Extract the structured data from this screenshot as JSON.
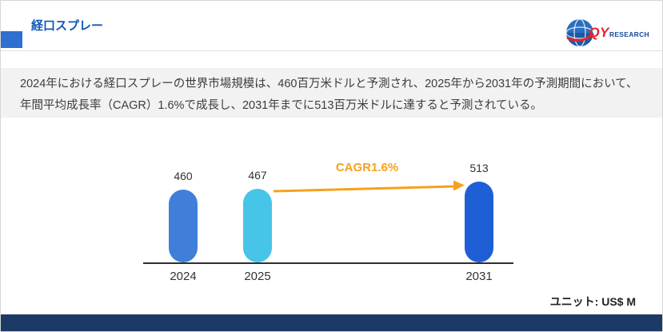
{
  "header": {
    "title": "経口スプレー",
    "logo": {
      "qy": "QY",
      "research": "RESEARCH"
    }
  },
  "description": "2024年における経口スプレーの世界市場規模は、460百万米ドルと予測され、2025年から2031年の予測期間において、年間平均成長率（CAGR）1.6%で成長し、2031年までに513百万米ドルに達すると予測されている。",
  "chart_data": {
    "type": "bar",
    "categories": [
      "2024",
      "2025",
      "2031"
    ],
    "values": [
      460,
      467,
      513
    ],
    "title": "",
    "xlabel": "",
    "ylabel": "",
    "ylim": [
      0,
      550
    ],
    "grid": false,
    "legend": false,
    "annotation": "CAGR1.6%",
    "unit_label": "ユニット: US$ M",
    "bar_colors": [
      "#3f7fd9",
      "#47c5e8",
      "#1f5fd6"
    ],
    "accent_color": "#f5a21d"
  },
  "colors": {
    "title": "#1158b8",
    "accent_block": "#2e6fd1",
    "description_bg": "#f2f2f2",
    "footer": "#1b3a66"
  }
}
